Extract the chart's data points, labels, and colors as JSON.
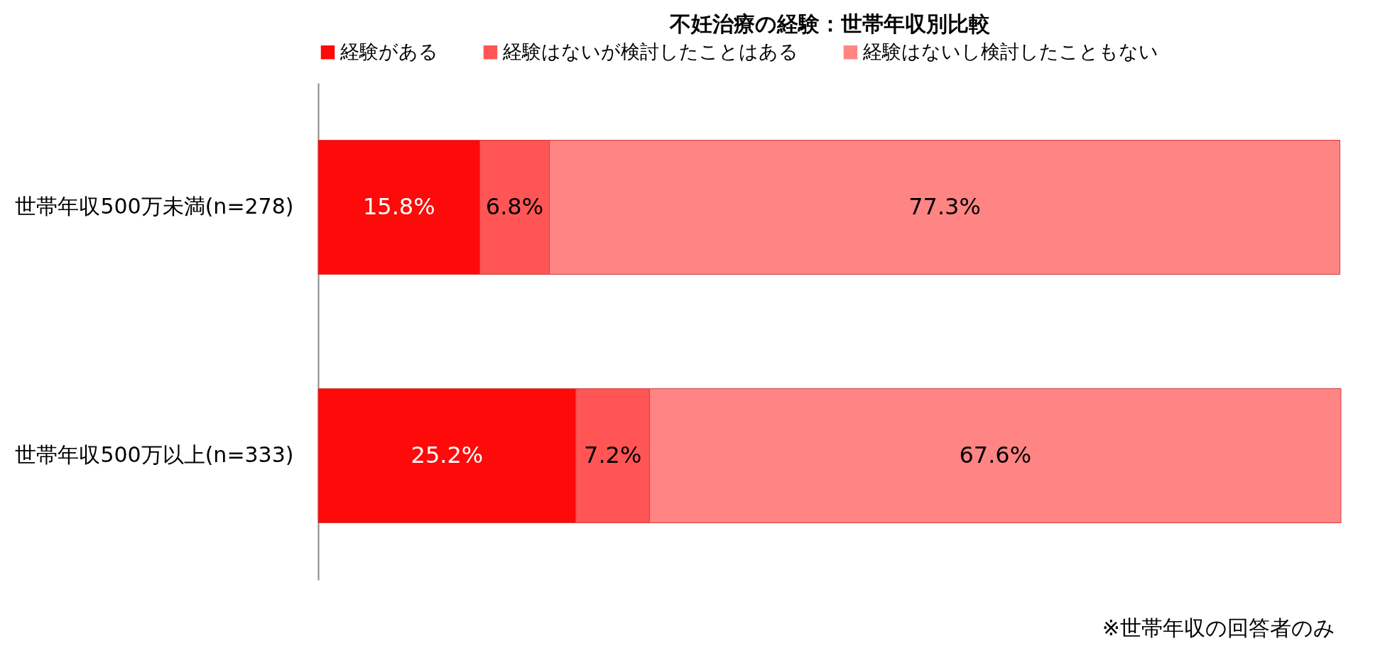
{
  "chart_data": {
    "type": "bar",
    "orientation": "horizontal",
    "stacked": true,
    "title": "不妊治療の経験：世帯年収別比較",
    "categories": [
      "世帯年収500万未満(n=278)",
      "世帯年収500万以上(n=333)"
    ],
    "series": [
      {
        "name": "経験がある",
        "color": "#fe0a0a",
        "values": [
          15.8,
          25.2
        ],
        "value_labels": [
          "15.8%",
          "25.2%"
        ]
      },
      {
        "name": "経験はないが検討したことはある",
        "color": "#ff5555",
        "values": [
          6.8,
          7.2
        ],
        "value_labels": [
          "6.8%",
          "7.2%"
        ]
      },
      {
        "name": "経験はないし検討したこともない",
        "color": "#ff8585",
        "values": [
          77.3,
          67.6
        ],
        "value_labels": [
          "77.3%",
          "67.6%"
        ]
      }
    ],
    "legend": "top",
    "tick_labels": "y",
    "annotations": [
      "※世帯年収の回答者のみ"
    ]
  }
}
